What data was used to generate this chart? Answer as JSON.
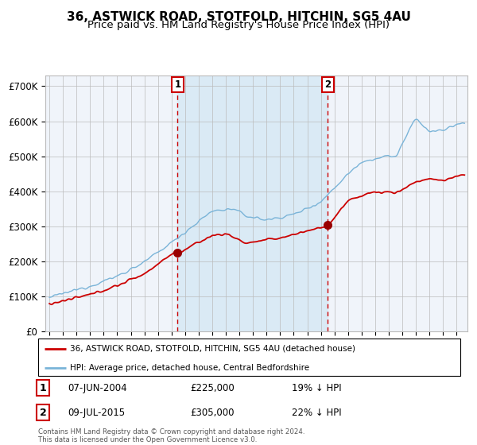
{
  "title": "36, ASTWICK ROAD, STOTFOLD, HITCHIN, SG5 4AU",
  "subtitle": "Price paid vs. HM Land Registry's House Price Index (HPI)",
  "title_fontsize": 11,
  "subtitle_fontsize": 9.5,
  "ylabel_ticks": [
    "£0",
    "£100K",
    "£200K",
    "£300K",
    "£400K",
    "£500K",
    "£600K",
    "£700K"
  ],
  "ytick_values": [
    0,
    100000,
    200000,
    300000,
    400000,
    500000,
    600000,
    700000
  ],
  "ylim": [
    0,
    730000
  ],
  "xlim_start": 1994.7,
  "xlim_end": 2025.8,
  "hpi_color": "#7ab4d8",
  "price_color": "#cc0000",
  "bg_fill_color": "#daeaf5",
  "vline_color": "#cc0000",
  "marker_color": "#990000",
  "transaction1_year": 2004.44,
  "transaction1_price": 225000,
  "transaction2_year": 2015.52,
  "transaction2_price": 305000,
  "legend1": "36, ASTWICK ROAD, STOTFOLD, HITCHIN, SG5 4AU (detached house)",
  "legend2": "HPI: Average price, detached house, Central Bedfordshire",
  "footer": "Contains HM Land Registry data © Crown copyright and database right 2024.\nThis data is licensed under the Open Government Licence v3.0.",
  "grid_color": "#bbbbbb",
  "background_color": "#ffffff",
  "plot_bg_color": "#f0f4fa"
}
